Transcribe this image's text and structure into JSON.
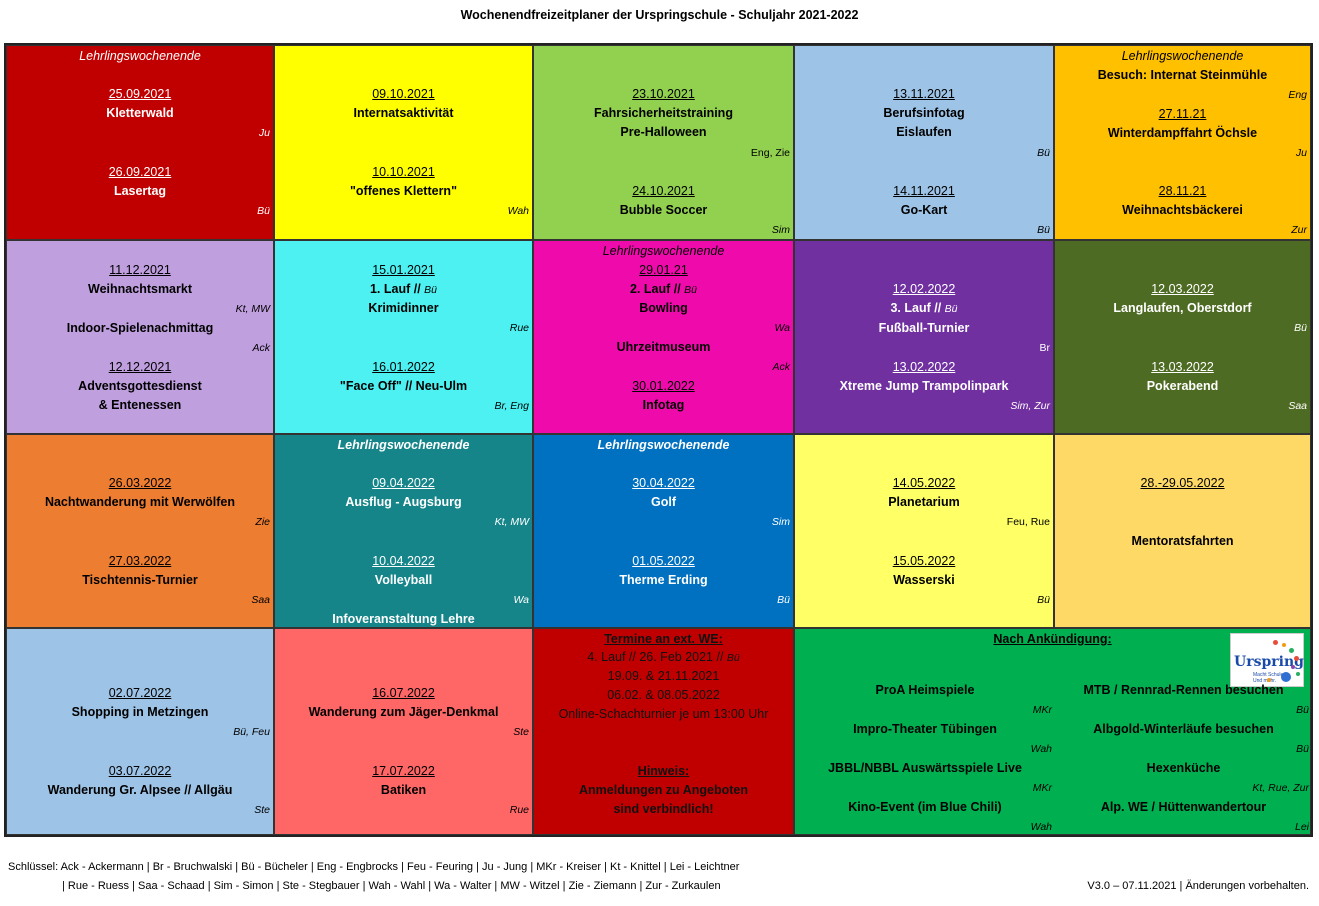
{
  "title": "Wochenendfreizeitplaner der Urspringschule - Schuljahr 2021-2022",
  "cells": {
    "r1c1": {
      "banner": "Lehrlingswochenende",
      "d1": "25.09.2021",
      "e1": "Kletterwald",
      "i1": "Ju",
      "d2": "26.09.2021",
      "e2": "Lasertag",
      "i2": "Bü"
    },
    "r1c2": {
      "d1": "09.10.2021",
      "e1": "Internatsaktivität",
      "d2": "10.10.2021",
      "e2": "\"offenes Klettern\"",
      "i2": "Wah"
    },
    "r1c3": {
      "d1": "23.10.2021",
      "e1": "Fahrsicherheitstraining",
      "e1b": "Pre-Halloween",
      "i1": "Eng, Zie",
      "d2": "24.10.2021",
      "e2": "Bubble Soccer",
      "i2": "Sim"
    },
    "r1c4": {
      "d1": "13.11.2021",
      "e1": "Berufsinfotag",
      "e1b": "Eislaufen",
      "i1": "Bü",
      "d2": "14.11.2021",
      "e2": "Go-Kart",
      "i2": "Bü"
    },
    "r1c5": {
      "banner": "Lehrlingswochenende",
      "e0": "Besuch: Internat Steinmühle",
      "i0": "Eng",
      "d1": "27.11.21",
      "e1": "Winterdampffahrt Öchsle",
      "i1": "Ju",
      "d2": "28.11.21",
      "e2": "Weihnachtsbäckerei",
      "i2": "Zur"
    },
    "r2c1": {
      "d1": "11.12.2021",
      "e1": "Weihnachtsmarkt",
      "i1": "Kt, MW",
      "e1b": "Indoor-Spielenachmittag",
      "i1b": "Ack",
      "d2": "12.12.2021",
      "e2": "Adventsgottesdienst",
      "e2b": "& Entenessen"
    },
    "r2c2": {
      "d1": "15.01.2021",
      "e1a": "1. Lauf //",
      "e1a_ini": "Bü",
      "e1": "Krimidinner",
      "i1": "Rue",
      "d2": "16.01.2022",
      "e2": "\"Face Off\" // Neu-Ulm",
      "i2": "Br, Eng"
    },
    "r2c3": {
      "banner": "Lehrlingswochenende",
      "d1": "29.01.21",
      "e1a": "2. Lauf //",
      "e1a_ini": "Bü",
      "e1": "Bowling",
      "i1": "Wa",
      "e1b": "Uhrzeitmuseum",
      "i1b": "Ack",
      "d2": "30.01.2022",
      "e2": "Infotag"
    },
    "r2c4": {
      "d1": "12.02.2022",
      "e1a": "3. Lauf //",
      "e1a_ini": "Bü",
      "e1": "Fußball-Turnier",
      "i1": "Br",
      "d2": "13.02.2022",
      "e2": "Xtreme Jump Trampolinpark",
      "i2": "Sim, Zur"
    },
    "r2c5": {
      "d1": "12.03.2022",
      "e1": "Langlaufen, Oberstdorf",
      "i1": "Bü",
      "d2": "13.03.2022",
      "e2": "Pokerabend",
      "i2": "Saa"
    },
    "r3c1": {
      "d1": "26.03.2022",
      "e1": "Nachtwanderung mit Werwölfen",
      "i1": "Zie",
      "d2": "27.03.2022",
      "e2": "Tischtennis-Turnier",
      "i2": "Saa"
    },
    "r3c2": {
      "banner": "Lehrlingswochenende",
      "d1": "09.04.2022",
      "e1": "Ausflug - Augsburg",
      "i1": "Kt, MW",
      "d2": "10.04.2022",
      "e2": "Volleyball",
      "i2": "Wa",
      "e3": "Infoveranstaltung Lehre"
    },
    "r3c3": {
      "banner": "Lehrlingswochenende",
      "d1": "30.04.2022",
      "e1": "Golf",
      "i1": "Sim",
      "d2": "01.05.2022",
      "e2": "Therme Erding",
      "i2": "Bü"
    },
    "r3c4": {
      "d1": "14.05.2022",
      "e1": "Planetarium",
      "i1": "Feu, Rue",
      "d2": "15.05.2022",
      "e2": "Wasserski",
      "i2": "Bü"
    },
    "r3c5": {
      "d1": "28.-29.05.2022",
      "e1": "Mentoratsfahrten"
    },
    "r4c1": {
      "d1": "02.07.2022",
      "e1": "Shopping in Metzingen",
      "i1": "Bü, Feu",
      "d2": "03.07.2022",
      "e2": "Wanderung Gr. Alpsee // Allgäu",
      "i2": "Ste"
    },
    "r4c2": {
      "d1": "16.07.2022",
      "e1": "Wanderung zum Jäger-Denkmal",
      "i1": "Ste",
      "d2": "17.07.2022",
      "e2": "Batiken",
      "i2": "Rue"
    },
    "r4c3": {
      "h1": "Termine an ext. WE:",
      "l1": "4. Lauf // 26. Feb 2021 //",
      "l1_ini": "Bü",
      "l2": "19.09. & 21.11.2021",
      "l3": "06.02. & 08.05.2022",
      "l4": "Online-Schachturnier je um 13:00 Uhr",
      "h2": "Hinweis:",
      "l5": "Anmeldungen zu Angeboten",
      "l6": "sind verbindlich!"
    },
    "r4c4": {
      "heading": "Nach Ankündigung:",
      "left": [
        {
          "t": "ProA Heimspiele",
          "i": "MKr"
        },
        {
          "t": "Impro-Theater Tübingen",
          "i": "Wah"
        },
        {
          "t": "JBBL/NBBL Auswärtsspiele Live",
          "i": "MKr"
        },
        {
          "t": "Kino-Event (im Blue Chili)",
          "i": "Wah"
        }
      ],
      "right": [
        {
          "t": "MTB / Rennrad-Rennen besuchen",
          "i": "Bü"
        },
        {
          "t": "Albgold-Winterläufe besuchen",
          "i": "Bü"
        },
        {
          "t": "Hexenküche",
          "i": "Kt, Rue, Zur"
        },
        {
          "t": "Alp. WE / Hüttenwandertour",
          "i": "Lei"
        }
      ],
      "logo_text": "Urspring",
      "logo_sub1": "Macht Schule.",
      "logo_sub2": "Und mehr."
    }
  },
  "colors": {
    "red": "#c00000",
    "yellow": "#ffff00",
    "lightgreen": "#92d050",
    "lightblue": "#9dc3e6",
    "orange": "#ffc000",
    "lavender": "#c09fdf",
    "cyan": "#4df1f1",
    "magenta": "#ef0bab",
    "purple": "#7030a0",
    "olive": "#4e6b23",
    "darkorange": "#ed7d31",
    "teal": "#16858a",
    "blue": "#0070c0",
    "paleyellow": "#ffff66",
    "peach": "#ffd966",
    "paleblue": "#9dc3e6",
    "salmon": "#ff6666",
    "darkred": "#c00000",
    "green": "#00b050"
  },
  "footer": {
    "key1": "Schlüssel: Ack - Ackermann | Br - Bruchwalski | Bü - Bücheler | Eng - Engbrocks | Feu - Feuring | Ju - Jung | MKr - Kreiser | Kt - Knittel | Lei - Leichtner",
    "key2": "| Rue - Ruess | Saa - Schaad | Sim - Simon | Ste - Stegbauer | Wah - Wahl | Wa - Walter | MW - Witzel | Zie - Ziemann | Zur - Zurkaulen",
    "version": "V3.0 – 07.11.2021 | Änderungen vorbehalten."
  }
}
